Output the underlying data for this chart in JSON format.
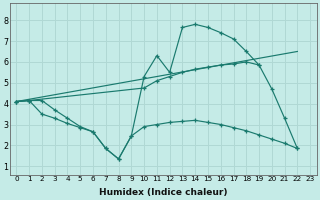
{
  "xlabel": "Humidex (Indice chaleur)",
  "bg_color": "#c5ebe7",
  "grid_color": "#b0d8d4",
  "line_color": "#1a7a6e",
  "xlim": [
    -0.5,
    23.5
  ],
  "ylim": [
    0.6,
    8.8
  ],
  "xticks": [
    0,
    1,
    2,
    3,
    4,
    5,
    6,
    7,
    8,
    9,
    10,
    11,
    12,
    13,
    14,
    15,
    16,
    17,
    18,
    19,
    20,
    21,
    22,
    23
  ],
  "yticks": [
    1,
    2,
    3,
    4,
    5,
    6,
    7,
    8
  ],
  "series": [
    {
      "x": [
        0,
        1,
        2,
        3,
        4,
        5,
        6,
        7,
        8,
        9,
        10,
        11,
        12,
        13,
        14,
        15,
        16,
        17,
        18,
        19,
        20,
        21,
        22
      ],
      "y": [
        4.1,
        4.15,
        4.15,
        3.7,
        3.3,
        2.9,
        2.65,
        1.85,
        1.35,
        2.45,
        5.3,
        6.3,
        5.5,
        7.65,
        7.8,
        7.65,
        7.4,
        7.1,
        6.5,
        5.85,
        4.7,
        3.3,
        1.85
      ]
    },
    {
      "x": [
        0,
        22
      ],
      "y": [
        4.1,
        6.5
      ]
    },
    {
      "x": [
        0,
        1,
        10,
        11,
        12,
        13,
        14,
        15,
        16,
        17,
        18,
        19
      ],
      "y": [
        4.1,
        4.15,
        4.75,
        5.1,
        5.3,
        5.5,
        5.65,
        5.75,
        5.85,
        5.9,
        6.0,
        5.85
      ]
    },
    {
      "x": [
        0,
        1,
        2,
        3,
        4,
        5,
        6,
        7,
        8,
        9,
        10,
        11,
        12,
        13,
        14,
        15,
        16,
        17,
        18,
        19,
        20,
        21,
        22
      ],
      "y": [
        4.1,
        4.15,
        3.5,
        3.3,
        3.05,
        2.85,
        2.65,
        1.85,
        1.35,
        2.45,
        2.9,
        3.0,
        3.1,
        3.15,
        3.2,
        3.1,
        3.0,
        2.85,
        2.7,
        2.5,
        2.3,
        2.1,
        1.85
      ]
    }
  ]
}
